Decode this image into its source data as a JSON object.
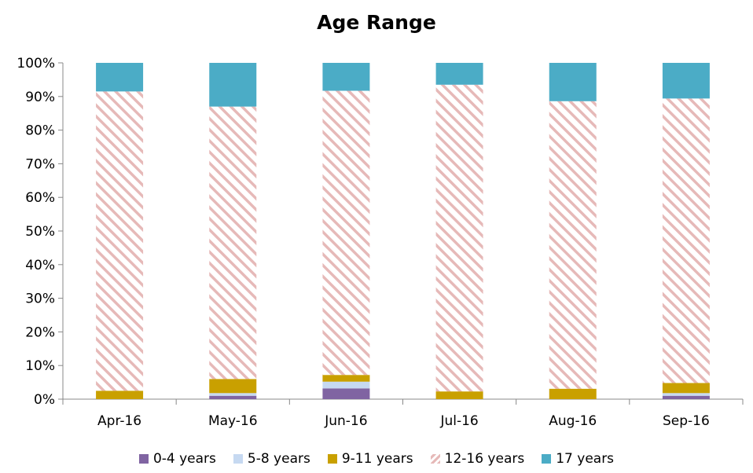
{
  "chart_data": {
    "type": "bar",
    "stacked": true,
    "title": "Age Range",
    "categories": [
      "Apr-16",
      "May-16",
      "Jun-16",
      "Jul-16",
      "Aug-16",
      "Sep-16"
    ],
    "ylim": [
      0,
      100
    ],
    "yticks": [
      "0%",
      "10%",
      "20%",
      "30%",
      "40%",
      "50%",
      "60%",
      "70%",
      "80%",
      "90%",
      "100%"
    ],
    "grid": false,
    "legend_position": "bottom",
    "series": [
      {
        "name": "0-4 years",
        "color": "#8064a2",
        "pattern": "solid",
        "values": [
          0.0,
          1.0,
          3.2,
          0.0,
          0.0,
          1.0
        ]
      },
      {
        "name": "5-8 years",
        "color": "#c6d9f1",
        "pattern": "solid",
        "values": [
          0.0,
          0.8,
          2.0,
          0.0,
          0.0,
          0.8
        ]
      },
      {
        "name": "9-11 years",
        "color": "#c9a000",
        "pattern": "solid",
        "values": [
          2.5,
          4.2,
          2.0,
          2.3,
          3.1,
          3.0
        ]
      },
      {
        "name": "12-16 years",
        "color": "#e6b9b8",
        "pattern": "diagonal-stripe",
        "values": [
          89.0,
          81.0,
          84.5,
          91.2,
          85.5,
          84.6
        ]
      },
      {
        "name": "17 years",
        "color": "#4bacc6",
        "pattern": "solid",
        "values": [
          8.5,
          13.0,
          8.3,
          6.5,
          11.4,
          10.6
        ]
      }
    ]
  }
}
